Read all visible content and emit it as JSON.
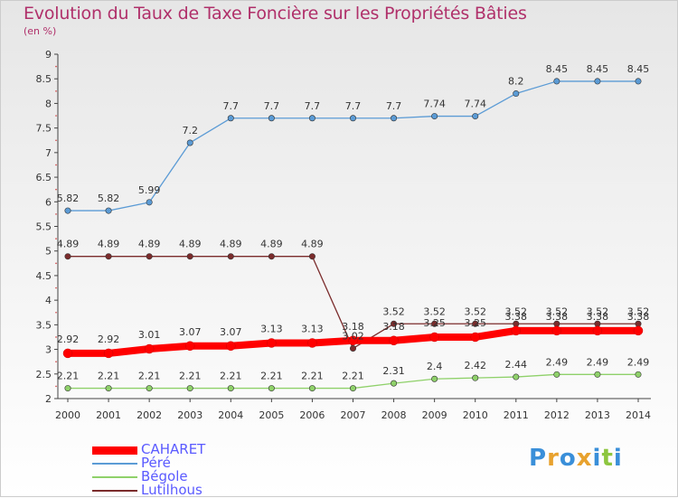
{
  "chart_data": {
    "type": "line",
    "title": "Evolution du Taux de Taxe Foncière sur les Propriétés Bâties",
    "ylabel": "(en %)",
    "xlabel": "",
    "ylim": [
      2,
      9
    ],
    "yticks": [
      2,
      2.5,
      3,
      3.5,
      4,
      4.5,
      5,
      5.5,
      6,
      6.5,
      7,
      7.5,
      8,
      8.5,
      9
    ],
    "ytick_labels": [
      "2",
      "2.5",
      "3",
      "3.5",
      "4",
      "4.5",
      "5",
      "5.5",
      "6",
      "6.5",
      "7",
      "7.5",
      "8",
      "8.5",
      "9"
    ],
    "categories": [
      "2000",
      "2001",
      "2002",
      "2003",
      "2004",
      "2005",
      "2006",
      "2007",
      "2008",
      "2009",
      "2010",
      "2011",
      "2012",
      "2013",
      "2014"
    ],
    "series": [
      {
        "name": "CAHARET",
        "color": "#ff0000",
        "values": [
          2.92,
          2.92,
          3.01,
          3.07,
          3.07,
          3.13,
          3.13,
          3.18,
          3.18,
          3.25,
          3.25,
          3.38,
          3.38,
          3.38,
          3.38
        ],
        "labels": [
          "2.92",
          "2.92",
          "3.01",
          "3.07",
          "3.07",
          "3.13",
          "3.13",
          "3.18",
          "3.18",
          "3.25",
          "3.25",
          "3.38",
          "3.38",
          "3.38",
          "3.38"
        ]
      },
      {
        "name": "Péré",
        "color": "#5b9bd5",
        "values": [
          5.82,
          5.82,
          5.99,
          7.2,
          7.7,
          7.7,
          7.7,
          7.7,
          7.7,
          7.74,
          7.74,
          8.2,
          8.45,
          8.45,
          8.45
        ],
        "labels": [
          "5.82",
          "5.82",
          "5.99",
          "7.2",
          "7.7",
          "7.7",
          "7.7",
          "7.7",
          "7.7",
          "7.74",
          "7.74",
          "8.2",
          "8.45",
          "8.45",
          "8.45"
        ]
      },
      {
        "name": "Bégole",
        "color": "#8fd16a",
        "values": [
          2.21,
          2.21,
          2.21,
          2.21,
          2.21,
          2.21,
          2.21,
          2.21,
          2.31,
          2.4,
          2.42,
          2.44,
          2.49,
          2.49,
          2.49
        ],
        "labels": [
          "2.21",
          "2.21",
          "2.21",
          "2.21",
          "2.21",
          "2.21",
          "2.21",
          "2.21",
          "2.31",
          "2.4",
          "2.42",
          "2.44",
          "2.49",
          "2.49",
          "2.49"
        ]
      },
      {
        "name": "Lutilhous",
        "color": "#7b2c2c",
        "values": [
          4.89,
          4.89,
          4.89,
          4.89,
          4.89,
          4.89,
          4.89,
          3.02,
          3.52,
          3.52,
          3.52,
          3.52,
          3.52,
          3.52,
          3.52
        ],
        "labels": [
          "4.89",
          "4.89",
          "4.89",
          "4.89",
          "4.89",
          "4.89",
          "4.89",
          "3.02",
          "3.52",
          "3.52",
          "3.52",
          "3.52",
          "3.52",
          "3.52",
          "3.52"
        ]
      }
    ],
    "legend_position": "bottom-left",
    "grid": false
  },
  "logo": {
    "letters": [
      "P",
      "r",
      "o",
      "x",
      "i",
      "t",
      "i"
    ],
    "colors": [
      "#3a8fd9",
      "#e8a22e",
      "#3a8fd9",
      "#e8a22e",
      "#3a8fd9",
      "#8dc63f",
      "#3a8fd9"
    ]
  }
}
